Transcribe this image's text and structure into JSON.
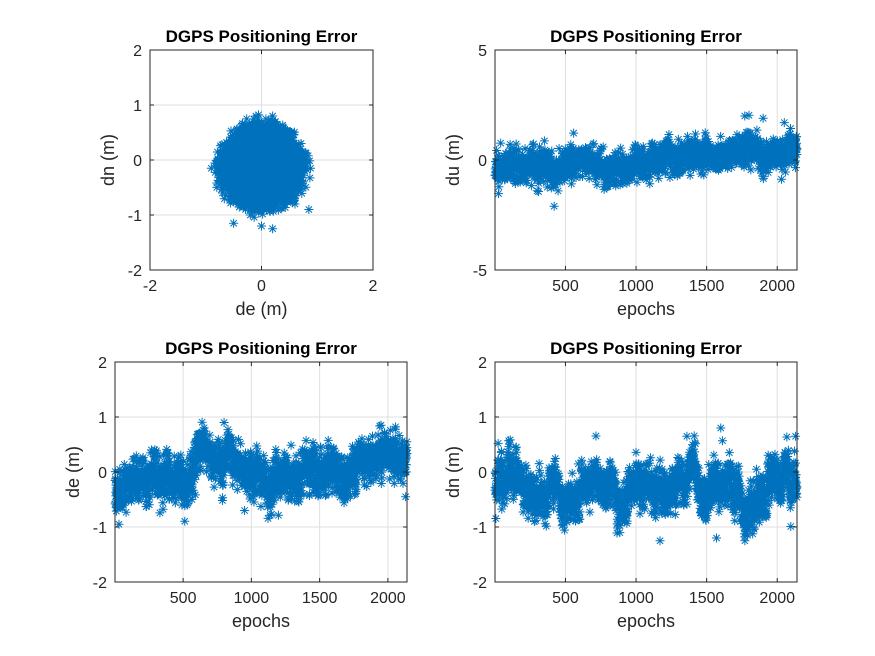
{
  "colors": {
    "marker": "#0072BD",
    "axis": "#262626",
    "grid": "#dfdfdf"
  },
  "chart_data": [
    {
      "type": "scatter",
      "title": "DGPS Positioning Error",
      "xlabel": "de (m)",
      "ylabel": "dn (m)",
      "xlim": [
        -2,
        2
      ],
      "ylim": [
        -2,
        2
      ],
      "xticks": [
        -2,
        0,
        2
      ],
      "yticks": [
        -2,
        -1,
        0,
        1,
        2
      ],
      "xtick_labels": [
        "-2",
        "0",
        "2"
      ],
      "ytick_labels": [
        "-2",
        "-1",
        "0",
        "1",
        "2"
      ],
      "grid": true,
      "marker": "*",
      "series": [
        {
          "description": "Dense cluster of points centered at (0, -0.1), roughly circular with radius about 0.9 m",
          "points": [
            [
              -0.9,
              -0.15
            ],
            [
              0.88,
              -0.15
            ],
            [
              0.85,
              -0.9
            ],
            [
              -0.5,
              -1.15
            ],
            [
              0.2,
              -1.25
            ],
            [
              -0.1,
              0.8
            ],
            [
              0.2,
              0.8
            ],
            [
              -0.3,
              0.6
            ],
            [
              0.5,
              0.5
            ],
            [
              -0.6,
              0.3
            ],
            [
              0.7,
              0.2
            ],
            [
              -0.7,
              -0.6
            ],
            [
              0.6,
              -0.8
            ],
            [
              0.0,
              -1.2
            ],
            [
              -0.2,
              -1.0
            ]
          ]
        }
      ]
    },
    {
      "type": "scatter",
      "title": "DGPS Positioning Error",
      "xlabel": "epochs",
      "ylabel": "du (m)",
      "xlim": [
        1,
        2140
      ],
      "ylim": [
        -5,
        5
      ],
      "xticks": [
        500,
        1000,
        1500,
        2000
      ],
      "yticks": [
        -5,
        0,
        5
      ],
      "xtick_labels": [
        "500",
        "1000",
        "1500",
        "2000"
      ],
      "ytick_labels": [
        "-5",
        "0",
        "5"
      ],
      "grid": true,
      "marker": "*",
      "series": [
        {
          "description": "Up error per epoch; band roughly -1.5 to 1.2 m, slowly rising mean from about -0.3 to 0.4",
          "trend": [
            [
              1,
              -0.3
            ],
            [
              100,
              -0.2
            ],
            [
              200,
              -0.4
            ],
            [
              300,
              -0.2
            ],
            [
              400,
              -0.6
            ],
            [
              500,
              -0.3
            ],
            [
              600,
              0.0
            ],
            [
              700,
              -0.1
            ],
            [
              800,
              -0.5
            ],
            [
              900,
              -0.4
            ],
            [
              1000,
              -0.2
            ],
            [
              1100,
              -0.1
            ],
            [
              1200,
              0.2
            ],
            [
              1300,
              0.0
            ],
            [
              1400,
              0.3
            ],
            [
              1500,
              0.2
            ],
            [
              1600,
              0.1
            ],
            [
              1700,
              0.4
            ],
            [
              1800,
              0.5
            ],
            [
              1900,
              0.2
            ],
            [
              2000,
              0.4
            ],
            [
              2140,
              0.3
            ]
          ],
          "spread": 0.55,
          "extremes": [
            [
              1770,
              2.0
            ],
            [
              1900,
              1.9
            ],
            [
              420,
              -2.1
            ],
            [
              2050,
              1.7
            ],
            [
              300,
              -1.4
            ]
          ]
        }
      ]
    },
    {
      "type": "scatter",
      "title": "DGPS Positioning Error",
      "xlabel": "epochs",
      "ylabel": "de (m)",
      "xlim": [
        1,
        2140
      ],
      "ylim": [
        -2,
        2
      ],
      "xticks": [
        500,
        1000,
        1500,
        2000
      ],
      "yticks": [
        -2,
        -1,
        0,
        1,
        2
      ],
      "xtick_labels": [
        "500",
        "1000",
        "1500",
        "2000"
      ],
      "ytick_labels": [
        "-2",
        "-1",
        "0",
        "1",
        "2"
      ],
      "grid": true,
      "marker": "*",
      "series": [
        {
          "description": "East error per epoch; mean near -0.2, bump to +0.4 around epoch 600-700, rises to +0.4 after epoch 1800",
          "trend": [
            [
              1,
              -0.25
            ],
            [
              100,
              -0.3
            ],
            [
              200,
              -0.15
            ],
            [
              300,
              -0.05
            ],
            [
              400,
              -0.1
            ],
            [
              500,
              -0.25
            ],
            [
              600,
              0.3
            ],
            [
              700,
              0.35
            ],
            [
              800,
              0.15
            ],
            [
              900,
              0.05
            ],
            [
              1000,
              0.0
            ],
            [
              1100,
              -0.15
            ],
            [
              1200,
              -0.05
            ],
            [
              1300,
              -0.2
            ],
            [
              1400,
              0.0
            ],
            [
              1500,
              0.05
            ],
            [
              1600,
              -0.2
            ],
            [
              1700,
              -0.1
            ],
            [
              1800,
              0.3
            ],
            [
              1900,
              0.35
            ],
            [
              2000,
              0.3
            ],
            [
              2140,
              0.25
            ]
          ],
          "spread": 0.28,
          "extremes": [
            [
              800,
              0.9
            ],
            [
              30,
              -0.95
            ],
            [
              950,
              -0.7
            ],
            [
              1950,
              0.85
            ],
            [
              2130,
              -0.45
            ]
          ]
        }
      ]
    },
    {
      "type": "scatter",
      "title": "DGPS Positioning Error",
      "xlabel": "epochs",
      "ylabel": "dn (m)",
      "xlim": [
        1,
        2140
      ],
      "ylim": [
        -2,
        2
      ],
      "xticks": [
        500,
        1000,
        1500,
        2000
      ],
      "yticks": [
        -2,
        -1,
        0,
        1,
        2
      ],
      "xtick_labels": [
        "500",
        "1000",
        "1500",
        "2000"
      ],
      "ytick_labels": [
        "-2",
        "-1",
        "0",
        "1",
        "2"
      ],
      "grid": true,
      "marker": "*",
      "series": [
        {
          "description": "North error per epoch; mean near -0.2 with oscillations between about -0.9 and 0.4",
          "trend": [
            [
              1,
              -0.2
            ],
            [
              100,
              -0.1
            ],
            [
              200,
              -0.2
            ],
            [
              300,
              -0.5
            ],
            [
              400,
              -0.2
            ],
            [
              500,
              -0.7
            ],
            [
              600,
              -0.3
            ],
            [
              700,
              -0.1
            ],
            [
              800,
              -0.3
            ],
            [
              900,
              -0.6
            ],
            [
              1000,
              -0.3
            ],
            [
              1100,
              -0.2
            ],
            [
              1200,
              -0.4
            ],
            [
              1300,
              -0.2
            ],
            [
              1400,
              0.0
            ],
            [
              1500,
              -0.5
            ],
            [
              1600,
              -0.1
            ],
            [
              1700,
              -0.4
            ],
            [
              1800,
              -0.6
            ],
            [
              1900,
              -0.3
            ],
            [
              2000,
              -0.2
            ],
            [
              2140,
              -0.1
            ]
          ],
          "spread": 0.3,
          "extremes": [
            [
              1600,
              0.8
            ],
            [
              1360,
              0.65
            ],
            [
              1170,
              -1.25
            ],
            [
              1570,
              -1.2
            ],
            [
              2130,
              0.65
            ],
            [
              1790,
              -1.15
            ]
          ]
        }
      ]
    }
  ]
}
